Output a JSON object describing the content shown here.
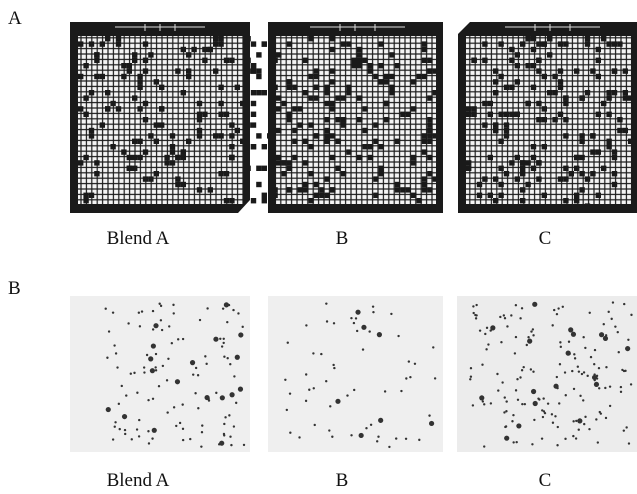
{
  "panels": [
    {
      "label": "A",
      "captions": [
        "Blend A",
        "B",
        "C"
      ]
    },
    {
      "label": "B",
      "captions": [
        "Blend A",
        "B",
        "C"
      ]
    }
  ]
}
